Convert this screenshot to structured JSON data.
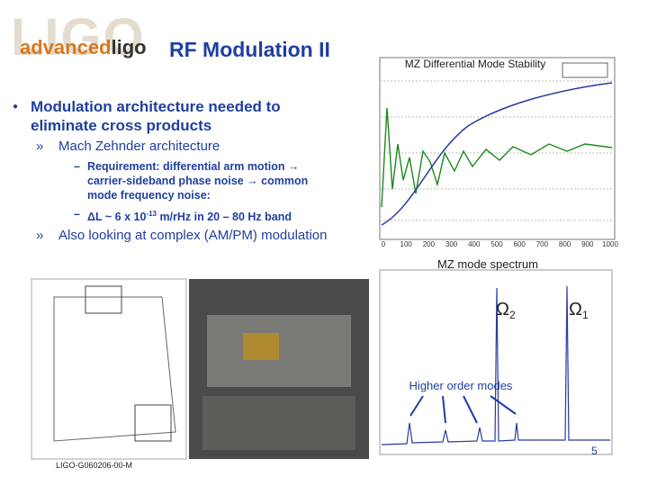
{
  "logo": {
    "watermark": "LIGO",
    "primary": "advanced",
    "secondary": "ligo"
  },
  "title": "RF Modulation II",
  "bullets": [
    {
      "text": "Modulation architecture needed to eliminate cross products"
    },
    {
      "text": "Mach Zehnder architecture"
    },
    {
      "text": "Requirement: differential arm motion → carrier-sideband phase noise → common mode frequency noise:"
    },
    {
      "text": "ΔL ~ 6 x 10",
      "sup": "-13",
      "rest": " m/rHz in 20 – 80 Hz band"
    },
    {
      "text": "Also looking at complex (AM/PM) modulation"
    }
  ],
  "figures": {
    "stability": {
      "title": "MZ Differential Mode Stability",
      "xticks": [
        "0",
        "100",
        "200",
        "300",
        "400",
        "500",
        "600",
        "700",
        "800",
        "900",
        "1000"
      ]
    },
    "spectrum": {
      "title": "MZ mode spectrum",
      "omega2": "Ω",
      "omega2_sub": "2",
      "omega1": "Ω",
      "omega1_sub": "1",
      "annotation": "Higher order modes"
    }
  },
  "footer": {
    "doc_id": "LIGO-G060206-00-M",
    "page": "5"
  }
}
